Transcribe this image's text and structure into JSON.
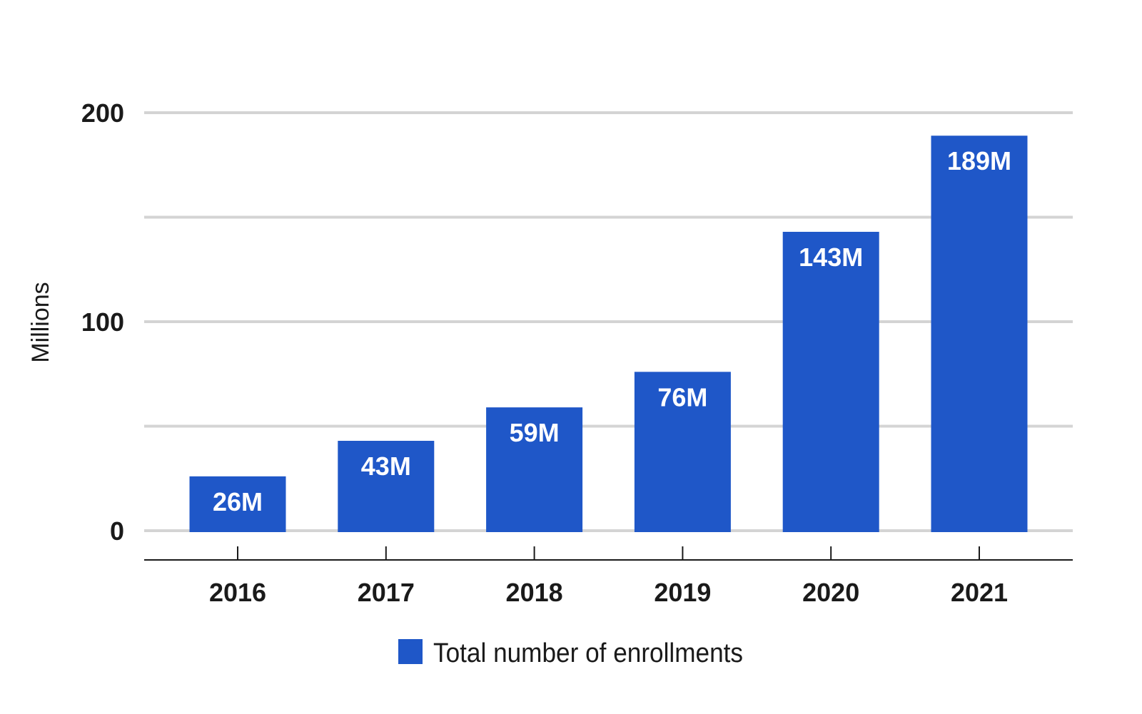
{
  "chart_data": {
    "type": "bar",
    "categories": [
      "2016",
      "2017",
      "2018",
      "2019",
      "2020",
      "2021"
    ],
    "series": [
      {
        "name": "Total number of enrollments",
        "values": [
          26,
          43,
          59,
          76,
          143,
          189
        ],
        "labels": [
          "26M",
          "43M",
          "59M",
          "76M",
          "143M",
          "189M"
        ],
        "color": "#1f57c8"
      }
    ],
    "ylabel": "Millions",
    "xlabel": "",
    "ylim": [
      0,
      200
    ],
    "yticks": [
      0,
      50,
      100,
      150,
      200
    ],
    "ytick_labels": [
      "0",
      "",
      "100",
      "",
      "200"
    ],
    "grid": true,
    "grid_color": "#d4d4d4",
    "legend_position": "bottom"
  }
}
